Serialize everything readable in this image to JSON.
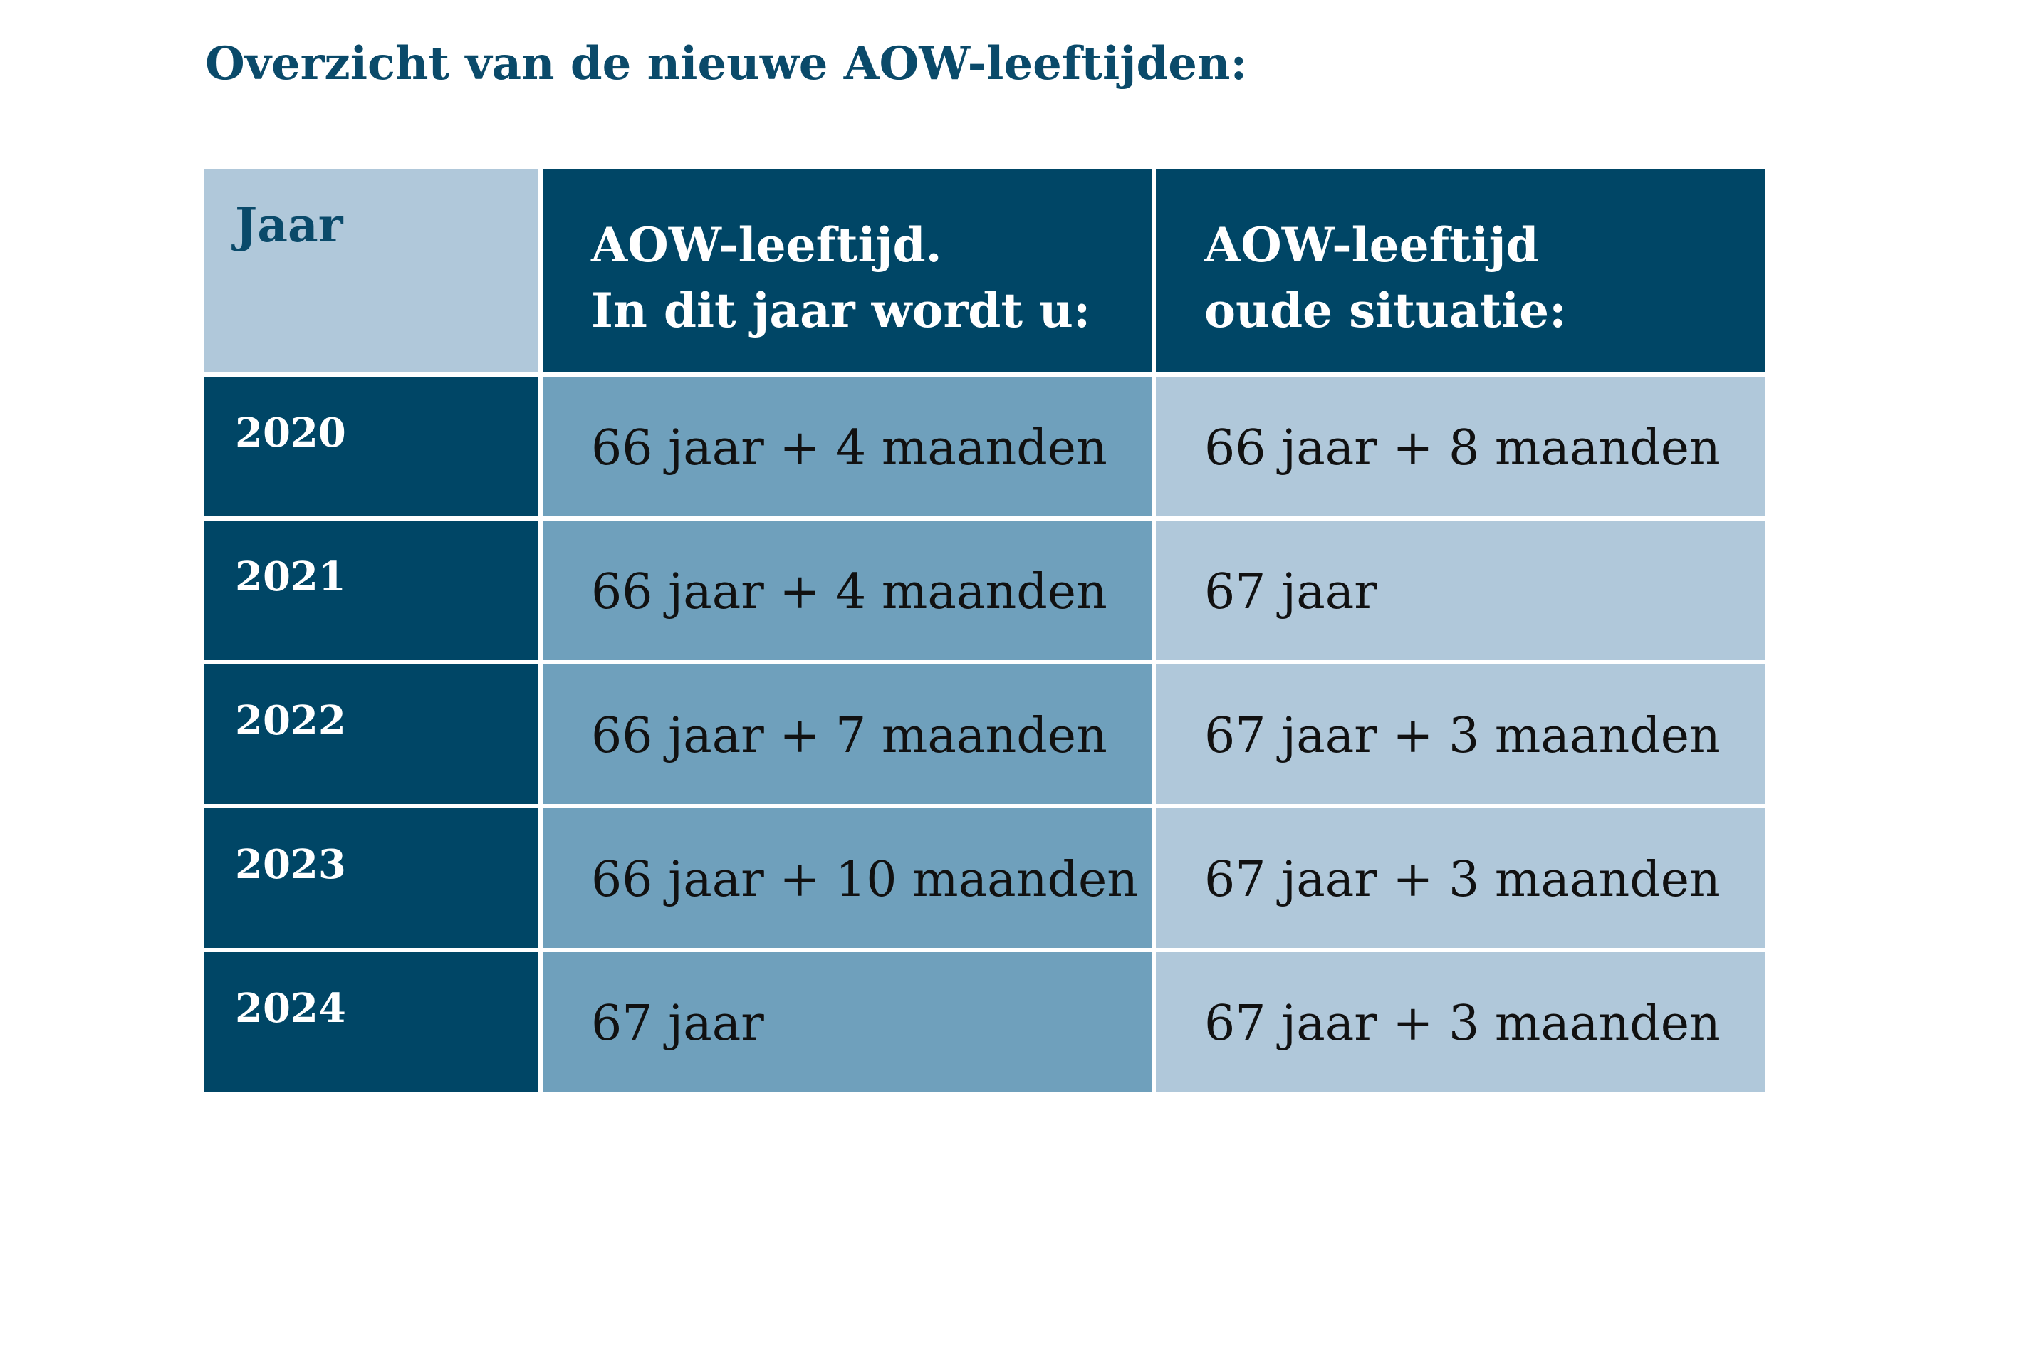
{
  "title": "Overzicht van de nieuwe AOW-leeftijden:",
  "colors": {
    "title": "#0a4a6a",
    "dark_blue": "#004666",
    "medium_blue": "#6fa0bc",
    "light_blue": "#b0c8da"
  },
  "table": {
    "headers": {
      "year": "Jaar",
      "new_age": [
        "AOW-leeftijd.",
        "In dit jaar wordt u:"
      ],
      "old_age": [
        "AOW-leeftijd",
        "oude situatie:"
      ]
    },
    "rows": [
      {
        "year": "2020",
        "new_age": "66 jaar + 4 maanden",
        "old_age": "66 jaar + 8 maanden"
      },
      {
        "year": "2021",
        "new_age": "66 jaar + 4 maanden",
        "old_age": "67 jaar"
      },
      {
        "year": "2022",
        "new_age": "66 jaar + 7 maanden",
        "old_age": "67 jaar + 3 maanden"
      },
      {
        "year": "2023",
        "new_age": "66 jaar + 10 maanden",
        "old_age": "67 jaar + 3 maanden"
      },
      {
        "year": "2024",
        "new_age": "67 jaar",
        "old_age": "67 jaar + 3 maanden"
      }
    ]
  }
}
